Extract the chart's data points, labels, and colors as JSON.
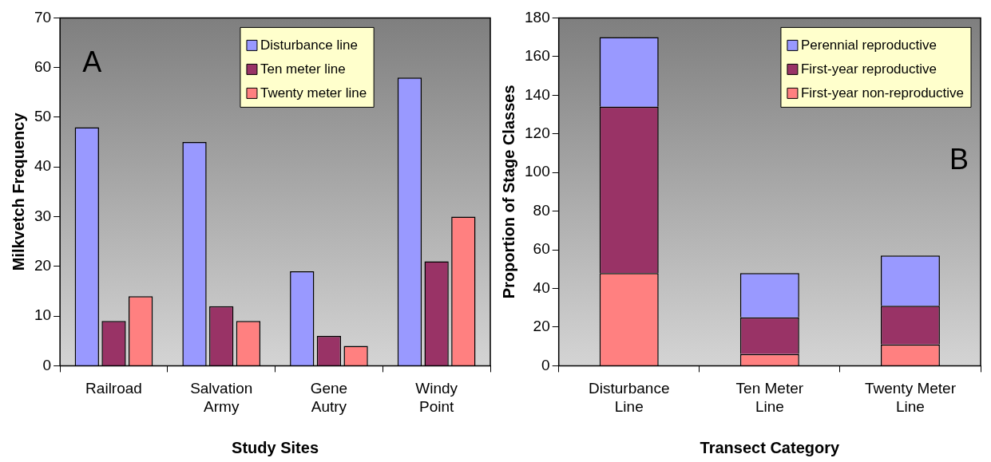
{
  "chart_data": [
    {
      "type": "bar",
      "xlabel": "Study Sites",
      "ylabel": "Milkvetch Frequency",
      "categories": [
        "Railroad",
        "Salvation Army",
        "Gene Autry",
        "Windy Point"
      ],
      "series": [
        {
          "name": "Disturbance line",
          "color": "#9999ff",
          "values": [
            48,
            45,
            19,
            58
          ]
        },
        {
          "name": "Ten meter line",
          "color": "#993366",
          "values": [
            9,
            12,
            6,
            21
          ]
        },
        {
          "name": "Twenty meter line",
          "color": "#ff8080",
          "values": [
            14,
            9,
            4,
            30
          ]
        }
      ],
      "ylim": [
        0,
        70
      ],
      "yticks": [
        0,
        10,
        20,
        30,
        40,
        50,
        60,
        70
      ],
      "grid": false,
      "legend": "top",
      "annotations": [
        "A"
      ]
    },
    {
      "type": "bar",
      "stacked": true,
      "xlabel": "Transect Category",
      "ylabel": "Proportion of Stage Classes",
      "categories": [
        "Disturbance Line",
        "Ten Meter Line",
        "Twenty Meter Line"
      ],
      "series": [
        {
          "name": "First-year non-reproductive",
          "color": "#ff8080",
          "values": [
            48,
            6,
            11
          ]
        },
        {
          "name": "First-year reproductive",
          "color": "#993366",
          "values": [
            86,
            19,
            20
          ]
        },
        {
          "name": "Perennial reproductive",
          "color": "#9999ff",
          "values": [
            36,
            23,
            26
          ]
        }
      ],
      "ylim": [
        0,
        180
      ],
      "yticks": [
        0,
        20,
        40,
        60,
        80,
        100,
        120,
        140,
        160,
        180
      ],
      "grid": false,
      "legend": "top right",
      "annotations": [
        "B"
      ]
    }
  ]
}
